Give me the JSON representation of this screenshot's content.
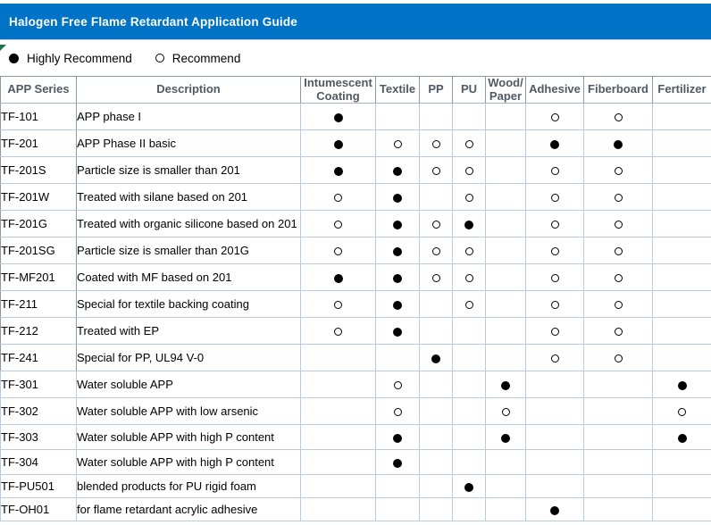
{
  "title": "Halogen Free Flame Retardant Application Guide",
  "legend": {
    "highly_recommend": {
      "label": "Highly Recommend",
      "icon": "filled-circle"
    },
    "recommend": {
      "label": "Recommend",
      "icon": "open-circle"
    }
  },
  "colors": {
    "title_bar_blue": "#0173c7",
    "title_text": "#ffffff",
    "header_text": "#515a64",
    "grid_light": "#b9cbe2",
    "grid_dark": "#8f97a3",
    "marker_green": "#217346",
    "mark_black": "#000000"
  },
  "table": {
    "columns": [
      {
        "key": "series",
        "label": "APP Series"
      },
      {
        "key": "description",
        "label": "Description"
      },
      {
        "key": "intumescent_coating",
        "label": "Intumescent Coating"
      },
      {
        "key": "textile",
        "label": "Textile"
      },
      {
        "key": "pp",
        "label": "PP"
      },
      {
        "key": "pu",
        "label": "PU"
      },
      {
        "key": "wood_paper",
        "label": "Wood/ Paper"
      },
      {
        "key": "adhesive",
        "label": "Adhesive"
      },
      {
        "key": "fiberboard",
        "label": "Fiberboard"
      },
      {
        "key": "fertilizer",
        "label": "Fertilizer"
      }
    ],
    "mark_legend": {
      "H": "Highly Recommend",
      "R": "Recommend",
      "": "none"
    },
    "mark_columns_order": [
      "intumescent_coating",
      "textile",
      "pp",
      "pu",
      "wood_paper",
      "adhesive",
      "fiberboard",
      "fertilizer"
    ],
    "rows": [
      {
        "series": "TF-101",
        "description": "APP phase I",
        "marks": [
          "H",
          "",
          "",
          "",
          "",
          "R",
          "R",
          ""
        ]
      },
      {
        "series": "TF-201",
        "description": "APP Phase II basic",
        "marks": [
          "H",
          "R",
          "R",
          "R",
          "",
          "H",
          "H",
          ""
        ]
      },
      {
        "series": "TF-201S",
        "description": "Particle size is smaller than 201",
        "marks": [
          "H",
          "H",
          "R",
          "R",
          "",
          "R",
          "R",
          ""
        ]
      },
      {
        "series": "TF-201W",
        "description": "Treated with silane based on 201",
        "marks": [
          "R",
          "H",
          "",
          "R",
          "",
          "R",
          "R",
          ""
        ]
      },
      {
        "series": "TF-201G",
        "description": "Treated with organic silicone based on 201",
        "marks": [
          "R",
          "H",
          "R",
          "H",
          "",
          "R",
          "R",
          ""
        ]
      },
      {
        "series": "TF-201SG",
        "description": "Particle size is smaller than 201G",
        "marks": [
          "R",
          "H",
          "R",
          "R",
          "",
          "R",
          "R",
          ""
        ]
      },
      {
        "series": "TF-MF201",
        "description": "Coated with MF based on 201",
        "marks": [
          "H",
          "H",
          "R",
          "R",
          "",
          "R",
          "R",
          ""
        ]
      },
      {
        "series": "TF-211",
        "description": "Special for textile backing coating",
        "marks": [
          "R",
          "H",
          "",
          "R",
          "",
          "R",
          "R",
          ""
        ]
      },
      {
        "series": "TF-212",
        "description": "Treated with EP",
        "marks": [
          "R",
          "H",
          "",
          "",
          "",
          "R",
          "R",
          ""
        ]
      },
      {
        "series": "TF-241",
        "description": "Special for PP, UL94 V-0",
        "marks": [
          "",
          "",
          "H",
          "",
          "",
          "R",
          "R",
          ""
        ]
      },
      {
        "series": "TF-301",
        "description": "Water soluble APP",
        "marks": [
          "",
          "R",
          "",
          "",
          "H",
          "",
          "",
          "H"
        ]
      },
      {
        "series": "TF-302",
        "description": "Water soluble APP with low arsenic",
        "marks": [
          "",
          "R",
          "",
          "",
          "R",
          "",
          "",
          "R"
        ]
      },
      {
        "series": "TF-303",
        "description": "Water soluble APP with high P content",
        "marks": [
          "",
          "H",
          "",
          "",
          "H",
          "",
          "",
          "H"
        ]
      },
      {
        "series": "TF-304",
        "description": "Water soluble APP with high P content",
        "marks": [
          "",
          "H",
          "",
          "",
          "",
          "",
          "",
          ""
        ]
      },
      {
        "series": "TF-PU501",
        "description": "blended products for PU rigid foam",
        "marks": [
          "",
          "",
          "",
          "H",
          "",
          "",
          "",
          ""
        ]
      },
      {
        "series": "TF-OH01",
        "description": "for flame retardant acrylic adhesive",
        "marks": [
          "",
          "",
          "",
          "",
          "",
          "H",
          "",
          ""
        ]
      }
    ]
  }
}
